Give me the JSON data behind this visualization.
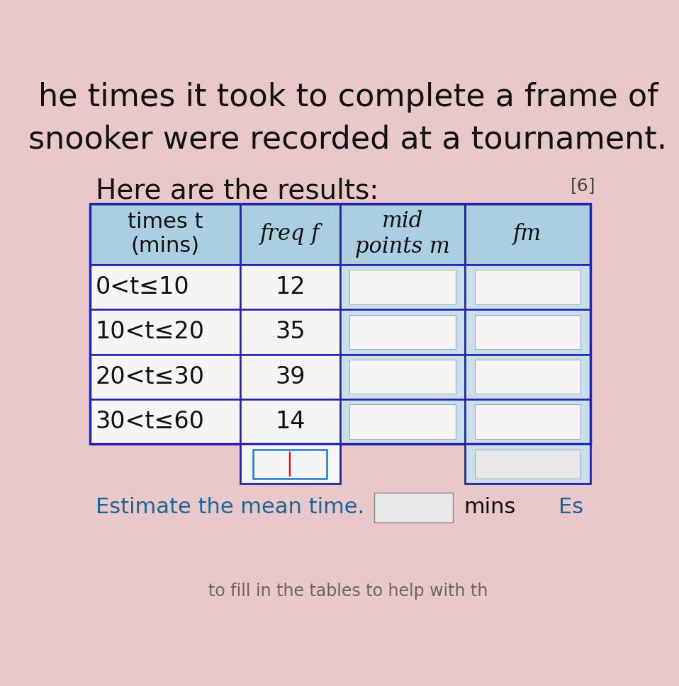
{
  "title_line1": "he times it took to complete a frame of",
  "title_line2": "snooker were recorded at a tournament.",
  "subtitle": "Here are the results:",
  "mark": "[6]",
  "footer_text": "Estimate the mean time.",
  "footer_unit": "mins",
  "footer_extra": "Es",
  "bg_color": "#e8c8c8",
  "header_bg": "#aacfe0",
  "cell_bg_white": "#f5f5f5",
  "cell_bg_light": "#c8e0ee",
  "inner_box_color": "#e8e8e8",
  "table_border": "#2222aa",
  "col_headers": [
    "times t\n(mins)",
    "freq f",
    "mid\npoints m",
    "fm"
  ],
  "col_headers_italic": [
    false,
    true,
    true,
    true
  ],
  "rows": [
    [
      "0<t≤10",
      "12"
    ],
    [
      "10<t≤20",
      "35"
    ],
    [
      "20<t≤30",
      "39"
    ],
    [
      "30<t≤60",
      "14"
    ]
  ],
  "title_fontsize": 32,
  "subtitle_fontsize": 28,
  "body_fontsize": 24,
  "header_fontsize": 22
}
